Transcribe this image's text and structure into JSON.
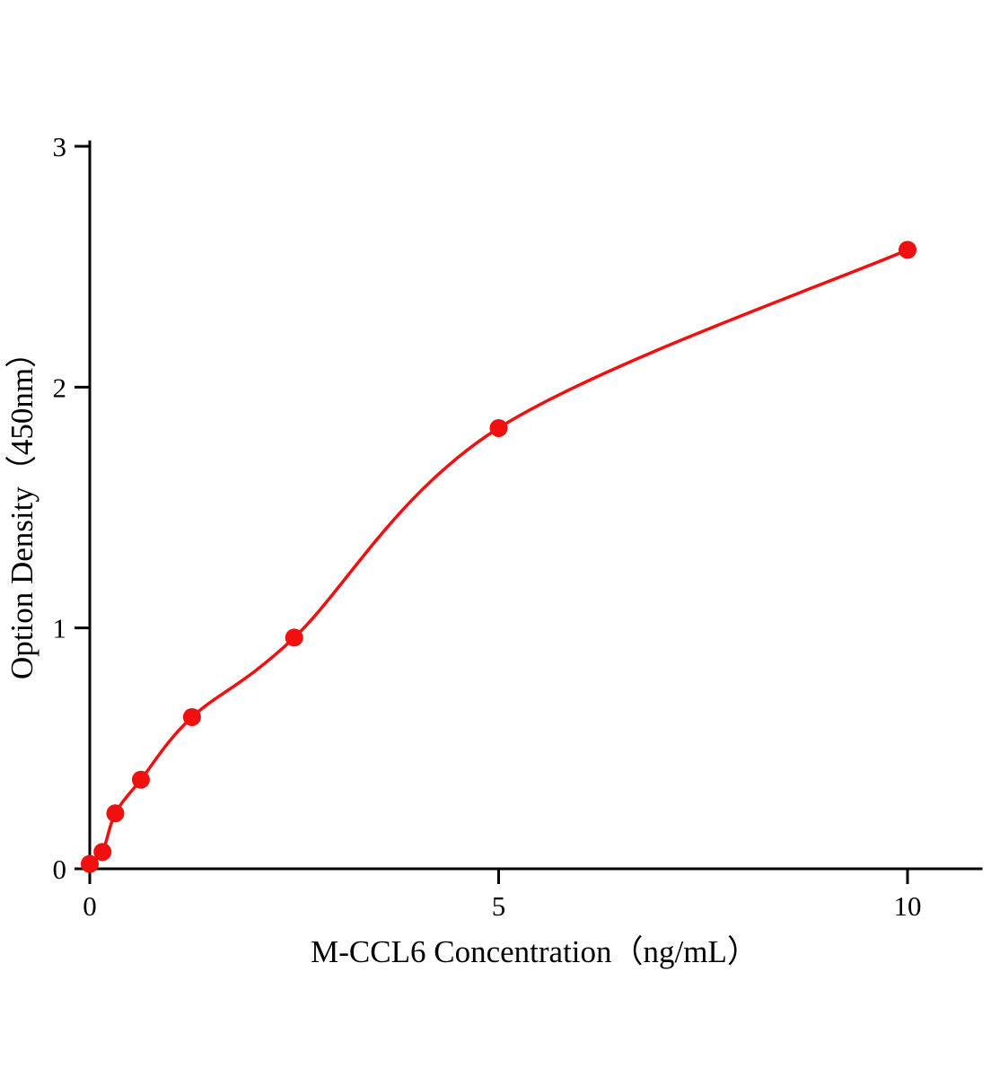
{
  "chart_data": {
    "type": "scatter",
    "title": "",
    "xlabel": "M-CCL6 Concentration（ng/mL）",
    "ylabel": "Option Density（450nm）",
    "x": [
      0,
      0.156,
      0.3125,
      0.625,
      1.25,
      2.5,
      5,
      10
    ],
    "y": [
      0.02,
      0.07,
      0.23,
      0.37,
      0.63,
      0.96,
      1.83,
      2.57
    ],
    "fit_curve": "smooth saturating curve through all points",
    "xlim": [
      0,
      10.9
    ],
    "ylim": [
      0,
      3
    ],
    "xticks": [
      0,
      5,
      10
    ],
    "yticks": [
      0,
      1,
      2,
      3
    ],
    "grid": false,
    "legend_position": "none",
    "point_color": "#f10f0f",
    "line_color": "#f10f0f",
    "axis_color": "#000000",
    "background_color": "#ffffff"
  }
}
